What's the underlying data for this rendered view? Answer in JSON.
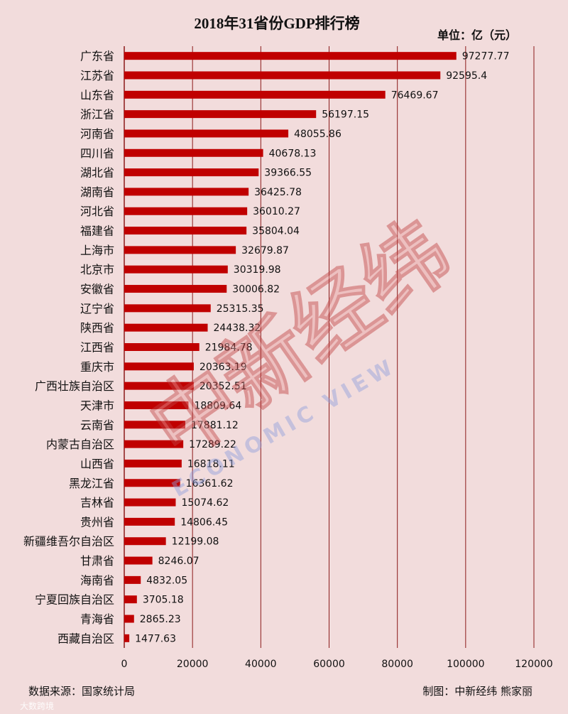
{
  "chart_data": {
    "type": "bar",
    "orientation": "horizontal",
    "title": "2018年31省份GDP排行榜",
    "unit_label": "单位：亿（元）",
    "categories": [
      "广东省",
      "江苏省",
      "山东省",
      "浙江省",
      "河南省",
      "四川省",
      "湖北省",
      "湖南省",
      "河北省",
      "福建省",
      "上海市",
      "北京市",
      "安徽省",
      "辽宁省",
      "陕西省",
      "江西省",
      "重庆市",
      "广西壮族自治区",
      "天津市",
      "云南省",
      "内蒙古自治区",
      "山西省",
      "黑龙江省",
      "吉林省",
      "贵州省",
      "新疆维吾尔自治区",
      "甘肃省",
      "海南省",
      "宁夏回族自治区",
      "青海省",
      "西藏自治区"
    ],
    "values": [
      97277.77,
      92595.4,
      76469.67,
      56197.15,
      48055.86,
      40678.13,
      39366.55,
      36425.78,
      36010.27,
      35804.04,
      32679.87,
      30319.98,
      30006.82,
      25315.35,
      24438.32,
      21984.78,
      20363.19,
      20352.51,
      18809.64,
      17881.12,
      17289.22,
      16818.11,
      16361.62,
      15074.62,
      14806.45,
      12199.08,
      8246.07,
      4832.05,
      3705.18,
      2865.23,
      1477.63
    ],
    "value_labels": [
      "97277.77",
      "92595.4",
      "76469.67",
      "56197.15",
      "48055.86",
      "40678.13",
      "39366.55",
      "36425.78",
      "36010.27",
      "35804.04",
      "32679.87",
      "30319.98",
      "30006.82",
      "25315.35",
      "24438.32",
      "21984.78",
      "20363.19",
      "20352.51",
      "18809.64",
      "17881.12",
      "17289.22",
      "16818.11",
      "16361.62",
      "15074.62",
      "14806.45",
      "12199.08",
      "8246.07",
      "4832.05",
      "3705.18",
      "2865.23",
      "1477.63"
    ],
    "xlim": [
      0,
      120000
    ],
    "x_ticks": [
      "0",
      "20000",
      "40000",
      "60000",
      "80000",
      "100000",
      "120000"
    ],
    "grid": "vertical",
    "bar_color": "#c00000",
    "grid_color": "#8b1a1a"
  },
  "footer": {
    "source": "数据来源：国家统计局",
    "credit": "制图：中新经纬  熊家丽",
    "corner_mark": "大数跨境"
  },
  "watermark": {
    "cn": "中新经纬",
    "en": "ECONOMIC VIEW"
  },
  "colors": {
    "background": "#f2dcdc",
    "watermark": "#7b8fd6"
  }
}
